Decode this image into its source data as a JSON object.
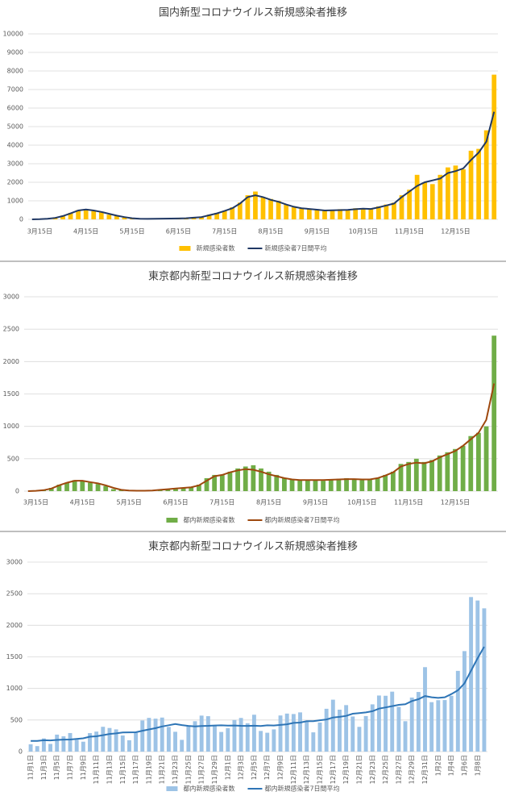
{
  "chart_data": [
    {
      "type": "bar_line",
      "title": "国内新型コロナウイルス新規感染者推移",
      "categories": [
        null,
        "3月15日",
        null,
        null,
        null,
        null,
        null,
        "4月15日",
        null,
        null,
        null,
        null,
        null,
        "5月15日",
        null,
        null,
        null,
        null,
        null,
        "6月15日",
        null,
        null,
        null,
        null,
        null,
        "7月15日",
        null,
        null,
        null,
        null,
        null,
        "8月15日",
        null,
        null,
        null,
        null,
        null,
        "9月15日",
        null,
        null,
        null,
        null,
        null,
        "10月15日",
        null,
        null,
        null,
        null,
        null,
        "11月15日",
        null,
        null,
        null,
        null,
        null,
        "12月15日",
        null,
        null,
        null,
        null,
        null
      ],
      "series": [
        {
          "name": "新規感染者数",
          "type": "bar",
          "color": "#ffc000",
          "values": [
            0,
            20,
            40,
            100,
            200,
            350,
            500,
            550,
            450,
            400,
            250,
            200,
            100,
            50,
            30,
            20,
            30,
            40,
            40,
            50,
            60,
            100,
            120,
            250,
            350,
            450,
            650,
            900,
            1300,
            1500,
            1200,
            1100,
            1000,
            800,
            650,
            600,
            550,
            550,
            450,
            500,
            550,
            500,
            600,
            600,
            550,
            700,
            800,
            900,
            1300,
            1600,
            2400,
            2000,
            1900,
            2400,
            2800,
            2900,
            2700,
            3700,
            3800,
            4800,
            7800
          ]
        },
        {
          "name": "新規感染者7日間平均",
          "type": "line",
          "color": "#203864",
          "values": [
            0,
            10,
            30,
            80,
            180,
            320,
            480,
            530,
            480,
            400,
            300,
            200,
            120,
            60,
            35,
            25,
            30,
            40,
            45,
            50,
            60,
            90,
            120,
            220,
            320,
            450,
            600,
            850,
            1200,
            1300,
            1200,
            1050,
            950,
            800,
            680,
            600,
            560,
            520,
            480,
            490,
            500,
            510,
            550,
            580,
            560,
            650,
            750,
            850,
            1200,
            1500,
            1800,
            2000,
            2100,
            2200,
            2500,
            2600,
            2750,
            3200,
            3600,
            4200,
            5800
          ]
        }
      ],
      "ylim": [
        0,
        10000
      ],
      "yticks": [
        0,
        1000,
        2000,
        3000,
        4000,
        5000,
        6000,
        7000,
        8000,
        9000,
        10000
      ],
      "grid": true
    },
    {
      "type": "bar_line",
      "title": "東京都内新型コロナウイルス新規感染者推移",
      "categories": [
        null,
        "3月15日",
        null,
        null,
        null,
        null,
        null,
        "4月15日",
        null,
        null,
        null,
        null,
        null,
        "5月15日",
        null,
        null,
        null,
        null,
        null,
        "6月15日",
        null,
        null,
        null,
        null,
        null,
        "7月15日",
        null,
        null,
        null,
        null,
        null,
        "8月15日",
        null,
        null,
        null,
        null,
        null,
        "9月15日",
        null,
        null,
        null,
        null,
        null,
        "10月15日",
        null,
        null,
        null,
        null,
        null,
        "11月15日",
        null,
        null,
        null,
        null,
        null,
        "12月15日",
        null,
        null,
        null,
        null,
        null
      ],
      "series": [
        {
          "name": "都内新規感染者数",
          "type": "bar",
          "color": "#70ad47",
          "values": [
            0,
            5,
            20,
            50,
            100,
            130,
            170,
            160,
            130,
            110,
            80,
            30,
            15,
            10,
            5,
            5,
            10,
            20,
            30,
            40,
            50,
            60,
            100,
            200,
            250,
            250,
            300,
            350,
            380,
            400,
            350,
            300,
            250,
            200,
            180,
            170,
            180,
            170,
            160,
            180,
            190,
            200,
            190,
            170,
            180,
            200,
            250,
            300,
            420,
            450,
            500,
            450,
            480,
            550,
            600,
            650,
            700,
            850,
            900,
            1000,
            2400
          ]
        },
        {
          "name": "都内新規感染者7日間平均",
          "type": "line",
          "color": "#9e480e",
          "values": [
            0,
            5,
            15,
            40,
            90,
            130,
            160,
            160,
            140,
            120,
            90,
            50,
            20,
            10,
            6,
            6,
            10,
            20,
            30,
            40,
            50,
            60,
            90,
            160,
            230,
            250,
            290,
            320,
            340,
            330,
            300,
            260,
            230,
            200,
            180,
            170,
            170,
            170,
            170,
            175,
            180,
            185,
            185,
            180,
            180,
            200,
            240,
            290,
            380,
            420,
            440,
            430,
            460,
            520,
            570,
            620,
            700,
            800,
            900,
            1100,
            1660
          ]
        }
      ],
      "ylim": [
        0,
        3000
      ],
      "yticks": [
        0,
        500,
        1000,
        1500,
        2000,
        2500,
        3000
      ],
      "grid": true
    },
    {
      "type": "bar_line",
      "title": "東京都内新型コロナウイルス新規感染者推移",
      "rotate_labels": true,
      "categories": [
        "11月1日",
        null,
        "11月3日",
        null,
        "11月5日",
        null,
        "11月7日",
        null,
        "11月9日",
        null,
        "11月11日",
        null,
        "11月13日",
        null,
        "11月15日",
        null,
        "11月17日",
        null,
        "11月19日",
        null,
        "11月21日",
        null,
        "11月23日",
        null,
        "11月25日",
        null,
        "11月27日",
        null,
        "11月29日",
        null,
        "12月1日",
        null,
        "12月3日",
        null,
        "12月5日",
        null,
        "12月7日",
        null,
        "12月9日",
        null,
        "12月11日",
        null,
        "12月13日",
        null,
        "12月15日",
        null,
        "12月17日",
        null,
        "12月19日",
        null,
        "12月21日",
        null,
        "12月23日",
        null,
        "12月25日",
        null,
        "12月27日",
        null,
        "12月29日",
        null,
        "12月31日",
        null,
        "1月2日",
        null,
        "1月4日",
        null,
        "1月6日",
        null,
        "1月8日",
        null
      ],
      "series": [
        {
          "name": "都内新規感染者数",
          "type": "bar",
          "color": "#9dc3e6",
          "values": [
            116,
            87,
            209,
            122,
            269,
            242,
            294,
            189,
            157,
            293,
            317,
            393,
            374,
            352,
            255,
            180,
            298,
            493,
            534,
            522,
            539,
            391,
            314,
            186,
            401,
            481,
            570,
            561,
            418,
            311,
            372,
            500,
            533,
            449,
            584,
            327,
            299,
            352,
            572,
            602,
            595,
            621,
            480,
            305,
            460,
            678,
            822,
            664,
            736,
            556,
            392,
            563,
            748,
            888,
            884,
            949,
            708,
            481,
            856,
            944,
            1337,
            783,
            814,
            816,
            884,
            1278,
            1591,
            2447,
            2392,
            2268
          ]
        },
        {
          "name": "都内新規感染者7日間平均",
          "type": "line",
          "color": "#2e75b6",
          "values": [
            170,
            168,
            180,
            178,
            185,
            190,
            191,
            201,
            211,
            236,
            243,
            261,
            280,
            288,
            302,
            305,
            306,
            331,
            351,
            372,
            398,
            417,
            436,
            420,
            407,
            399,
            406,
            409,
            413,
            416,
            412,
            414,
            408,
            407,
            410,
            405,
            416,
            413,
            423,
            433,
            454,
            459,
            481,
            482,
            497,
            508,
            540,
            550,
            566,
            600,
            610,
            620,
            640,
            680,
            700,
            720,
            740,
            750,
            800,
            830,
            880,
            860,
            850,
            860,
            910,
            970,
            1080,
            1280,
            1480,
            1660
          ]
        }
      ],
      "ylim": [
        0,
        3000
      ],
      "yticks": [
        0,
        500,
        1000,
        1500,
        2000,
        2500,
        3000
      ],
      "grid": true
    }
  ]
}
